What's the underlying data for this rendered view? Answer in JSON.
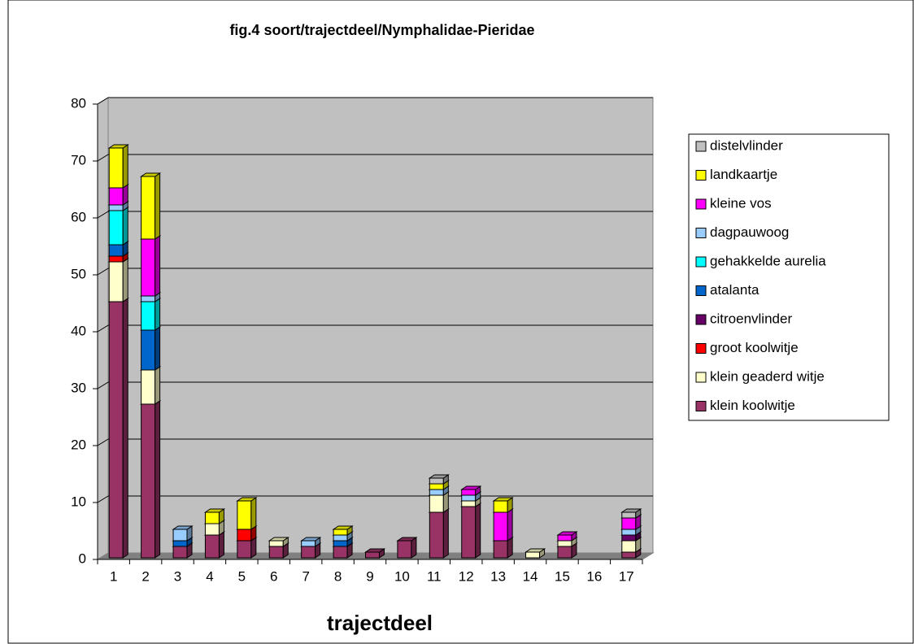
{
  "chart_data": {
    "type": "bar",
    "stacked": true,
    "title": "fig.4  soort/trajectdeel/Nymphalidae-Pieridae",
    "x_label": "trajectdeel",
    "categories": [
      "1",
      "2",
      "3",
      "4",
      "5",
      "6",
      "7",
      "8",
      "9",
      "10",
      "11",
      "12",
      "13",
      "14",
      "15",
      "16",
      "17"
    ],
    "ylim": [
      0,
      80
    ],
    "yticks": [
      0,
      10,
      20,
      30,
      40,
      50,
      60,
      70,
      80
    ],
    "grid": true,
    "legend": "right",
    "series": [
      {
        "name": "klein koolwitje",
        "color": "#993366",
        "values": [
          45,
          27,
          2,
          4,
          3,
          2,
          2,
          2,
          1,
          3,
          8,
          9,
          3,
          0,
          2,
          0,
          1
        ]
      },
      {
        "name": "klein geaderd witje",
        "color": "#FFFFCC",
        "values": [
          7,
          6,
          0,
          2,
          0,
          1,
          0,
          0,
          0,
          0,
          3,
          1,
          0,
          1,
          1,
          0,
          2
        ]
      },
      {
        "name": "groot koolwitje",
        "color": "#FF0000",
        "values": [
          1,
          0,
          0,
          0,
          2,
          0,
          0,
          0,
          0,
          0,
          0,
          0,
          0,
          0,
          0,
          0,
          0
        ]
      },
      {
        "name": "citroenvlinder",
        "color": "#660066",
        "values": [
          0,
          0,
          0,
          0,
          0,
          0,
          0,
          0,
          0,
          0,
          0,
          0,
          0,
          0,
          0,
          0,
          1
        ]
      },
      {
        "name": "atalanta",
        "color": "#0066CC",
        "values": [
          2,
          7,
          1,
          0,
          0,
          0,
          0,
          1,
          0,
          0,
          0,
          0,
          0,
          0,
          0,
          0,
          0
        ]
      },
      {
        "name": "gehakkelde aurelia",
        "color": "#00FFFF",
        "values": [
          6,
          5,
          0,
          0,
          0,
          0,
          0,
          0,
          0,
          0,
          0,
          0,
          0,
          0,
          0,
          0,
          0
        ]
      },
      {
        "name": "dagpauwoog",
        "color": "#99CCFF",
        "values": [
          1,
          1,
          2,
          0,
          0,
          0,
          1,
          1,
          0,
          0,
          1,
          1,
          0,
          0,
          0,
          0,
          1
        ]
      },
      {
        "name": "kleine vos",
        "color": "#FF00FF",
        "values": [
          3,
          10,
          0,
          0,
          0,
          0,
          0,
          0,
          0,
          0,
          0,
          1,
          5,
          0,
          1,
          0,
          2
        ]
      },
      {
        "name": "landkaartje",
        "color": "#FFFF00",
        "values": [
          7,
          11,
          0,
          2,
          5,
          0,
          0,
          1,
          0,
          0,
          1,
          0,
          2,
          0,
          0,
          0,
          0
        ]
      },
      {
        "name": "distelvlinder",
        "color": "#C0C0C0",
        "values": [
          0,
          0,
          0,
          0,
          0,
          0,
          0,
          0,
          0,
          0,
          1,
          0,
          0,
          0,
          0,
          0,
          1
        ]
      }
    ]
  }
}
